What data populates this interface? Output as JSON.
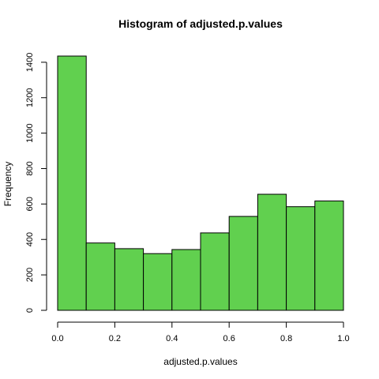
{
  "chart_data": {
    "type": "bar",
    "title": "Histogram of adjusted.p.values",
    "xlabel": "adjusted.p.values",
    "ylabel": "Frequency",
    "bins": [
      {
        "from": 0.0,
        "to": 0.1,
        "count": 1435
      },
      {
        "from": 0.1,
        "to": 0.2,
        "count": 380
      },
      {
        "from": 0.2,
        "to": 0.3,
        "count": 348
      },
      {
        "from": 0.3,
        "to": 0.4,
        "count": 320
      },
      {
        "from": 0.4,
        "to": 0.5,
        "count": 343
      },
      {
        "from": 0.5,
        "to": 0.6,
        "count": 437
      },
      {
        "from": 0.6,
        "to": 0.7,
        "count": 530
      },
      {
        "from": 0.7,
        "to": 0.8,
        "count": 655
      },
      {
        "from": 0.8,
        "to": 0.9,
        "count": 585
      },
      {
        "from": 0.9,
        "to": 1.0,
        "count": 617
      }
    ],
    "xlim": [
      0,
      1
    ],
    "ylim": [
      0,
      1435
    ],
    "xticks": [
      "0.0",
      "0.2",
      "0.4",
      "0.6",
      "0.8",
      "1.0"
    ],
    "yticks": [
      "0",
      "200",
      "400",
      "600",
      "800",
      "1000",
      "1200",
      "1400"
    ],
    "bar_color": "#61d04f",
    "grid": false
  }
}
